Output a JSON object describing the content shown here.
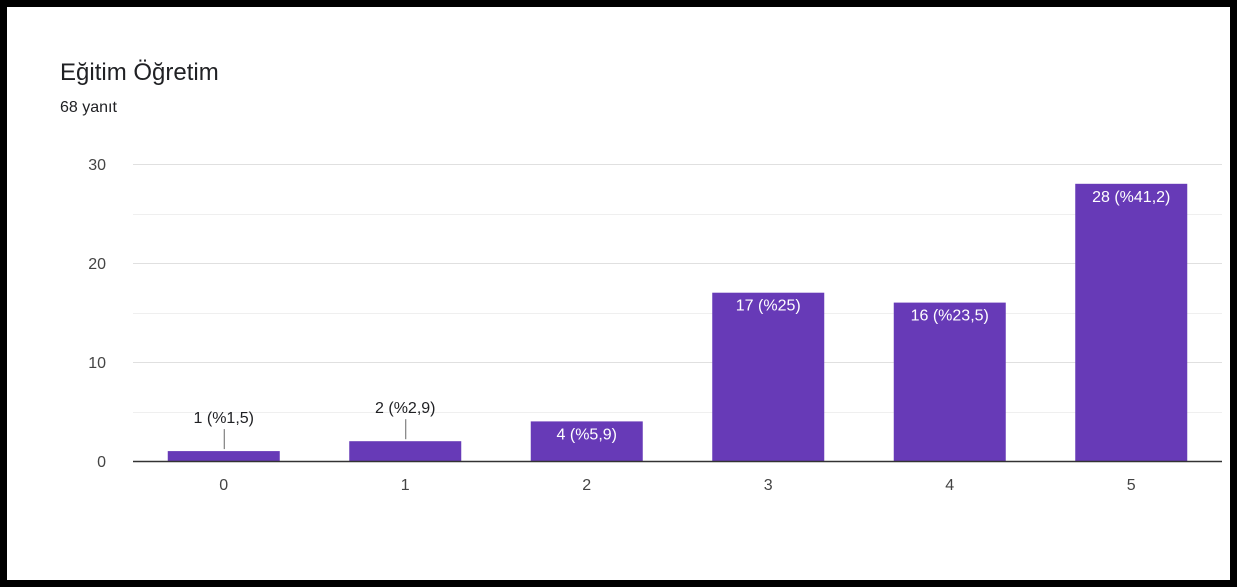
{
  "chart_data": {
    "type": "bar",
    "title": "Eğitim Öğretim",
    "subtitle": "68 yanıt",
    "categories": [
      "0",
      "1",
      "2",
      "3",
      "4",
      "5"
    ],
    "values": [
      1,
      2,
      4,
      17,
      16,
      28
    ],
    "data_labels": [
      "1 (%1,5)",
      "2 (%2,9)",
      "4 (%5,9)",
      "17 (%25)",
      "16 (%23,5)",
      "28 (%41,2)"
    ],
    "y_ticks": [
      0,
      10,
      20,
      30
    ],
    "ylim": [
      0,
      30
    ],
    "grid": true,
    "bar_color": "#673ab7",
    "label_color_inside": "#ffffff",
    "label_color_outside": "#202124"
  }
}
